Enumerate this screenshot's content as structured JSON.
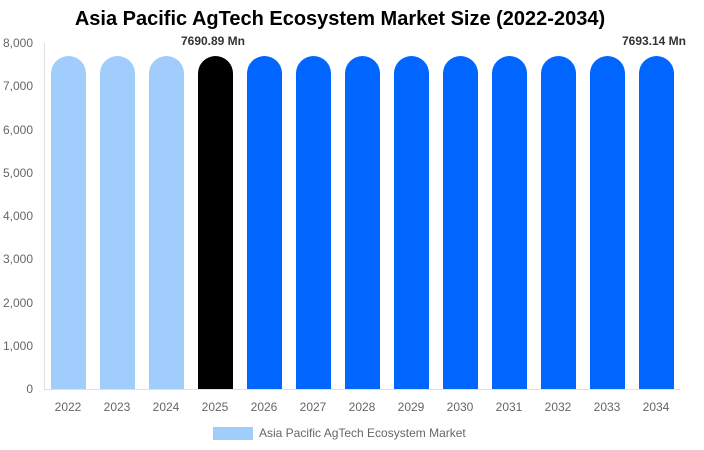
{
  "chart_data": {
    "type": "bar",
    "title": "Asia Pacific AgTech Ecosystem Market Size (2022-2034)",
    "xlabel": "",
    "ylabel": "",
    "ylim": [
      0,
      8000
    ],
    "yticks": [
      "0",
      "1,000",
      "2,000",
      "3,000",
      "4,000",
      "5,000",
      "6,000",
      "7,000",
      "8,000"
    ],
    "categories": [
      "2022",
      "2023",
      "2024",
      "2025",
      "2026",
      "2027",
      "2028",
      "2029",
      "2030",
      "2031",
      "2032",
      "2033",
      "2034"
    ],
    "series": [
      {
        "name": "Asia Pacific AgTech Ecosystem Market",
        "values": [
          7690,
          7690,
          7690,
          7690.89,
          7691,
          7691,
          7691,
          7692,
          7692,
          7692,
          7692,
          7693,
          7693.14
        ]
      }
    ],
    "bar_colors": [
      "#a1cdfc",
      "#a1cdfc",
      "#a1cdfc",
      "#000000",
      "#0066ff",
      "#0066ff",
      "#0066ff",
      "#0066ff",
      "#0066ff",
      "#0066ff",
      "#0066ff",
      "#0066ff",
      "#0066ff"
    ],
    "annotations": [
      {
        "category": "2025",
        "text": "7690.89 Mn"
      },
      {
        "category": "2034",
        "text": "7693.14 Mn"
      }
    ],
    "legend": {
      "position": "bottom",
      "entries": [
        {
          "label": "Asia Pacific AgTech Ecosystem Market",
          "color": "#a1cdfc"
        }
      ]
    },
    "grid": false
  }
}
